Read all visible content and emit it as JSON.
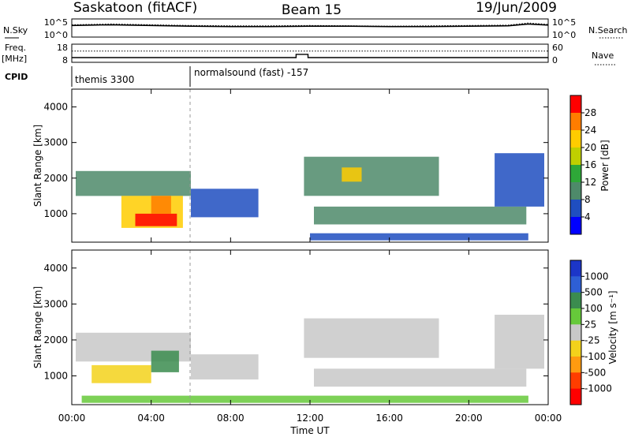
{
  "header": {
    "station": "Saskatoon (fitACF)",
    "beam": "Beam 15",
    "date": "19/Jun/2009"
  },
  "left_labels": {
    "nsky": "N.Sky",
    "freq": "Freq.",
    "freq_unit": "[MHz]",
    "cpid": "CPID"
  },
  "right_labels": {
    "nsearch": "N.Search",
    "nave": "Nave"
  },
  "cpid_strip": [
    {
      "start_hour": 0.0,
      "label": "themis 3300"
    },
    {
      "start_hour": 6.0,
      "label": "normalsound (fast) -157"
    }
  ],
  "chart_data": [
    {
      "type": "line",
      "name": "noise_panel",
      "left_ticks": [
        "10^5",
        "10^0"
      ],
      "right_ticks": [
        "10^5",
        "10^0"
      ],
      "series": [
        {
          "name": "N.Sky",
          "x": [
            0,
            1,
            2,
            4,
            6,
            8,
            10,
            12,
            14,
            16,
            18,
            20,
            22,
            23,
            24
          ],
          "values": [
            3.2,
            3.3,
            3.4,
            3.2,
            3.0,
            2.9,
            2.9,
            3.0,
            3.0,
            2.9,
            2.9,
            3.0,
            3.1,
            3.6,
            3.3
          ]
        },
        {
          "name": "N.Search",
          "x": [
            0,
            1,
            2,
            4,
            6,
            8,
            10,
            12,
            14,
            16,
            18,
            20,
            22,
            23,
            24
          ],
          "values": [
            3.4,
            3.5,
            3.6,
            3.4,
            3.2,
            3.1,
            3.1,
            3.2,
            3.1,
            3.0,
            3.1,
            3.2,
            3.3,
            3.9,
            3.5
          ]
        }
      ]
    },
    {
      "type": "line",
      "name": "freq_nave_panel",
      "left_ticks": [
        "18",
        "8"
      ],
      "right_ticks": [
        "60",
        "0"
      ],
      "series": [
        {
          "name": "Freq.",
          "x": [
            0,
            11.3,
            11.3,
            11.9,
            11.9,
            24
          ],
          "values": [
            10.6,
            10.6,
            12.4,
            12.4,
            10.6,
            10.6
          ]
        },
        {
          "name": "Nave",
          "x": [
            0,
            24
          ],
          "values": [
            37,
            37
          ]
        }
      ]
    },
    {
      "type": "heatmap",
      "name": "power_panel",
      "ylabel": "Slant Range [km]",
      "yticks": [
        1000,
        2000,
        3000,
        4000
      ],
      "ylim": [
        200,
        4500
      ],
      "xlim": [
        0,
        24
      ],
      "colorbar": {
        "label": "Power [dB]",
        "ticks": [
          "28",
          "24",
          "20",
          "16",
          "12",
          "8",
          "4"
        ],
        "colors": [
          "#ff0000",
          "#ff7d00",
          "#ffcc00",
          "#c0d000",
          "#2ea838",
          "#4e8a6a",
          "#1f4ec0",
          "#0000ff"
        ]
      },
      "regions": [
        {
          "x0": 0.2,
          "x1": 6.0,
          "y0": 1500,
          "y1": 2200,
          "level": 2
        },
        {
          "x0": 2.5,
          "x1": 5.6,
          "y0": 600,
          "y1": 1500,
          "level": 5
        },
        {
          "x0": 3.2,
          "x1": 5.3,
          "y0": 650,
          "y1": 1000,
          "level": 7
        },
        {
          "x0": 4.0,
          "x1": 5.0,
          "y0": 1000,
          "y1": 1500,
          "level": 6
        },
        {
          "x0": 6.0,
          "x1": 9.4,
          "y0": 900,
          "y1": 1700,
          "level": 1
        },
        {
          "x0": 11.7,
          "x1": 18.5,
          "y0": 1500,
          "y1": 2600,
          "level": 2
        },
        {
          "x0": 13.6,
          "x1": 14.6,
          "y0": 1900,
          "y1": 2300,
          "level": 5
        },
        {
          "x0": 12.2,
          "x1": 22.9,
          "y0": 700,
          "y1": 1200,
          "level": 2
        },
        {
          "x0": 12.0,
          "x1": 23.0,
          "y0": 250,
          "y1": 450,
          "level": 1
        },
        {
          "x0": 21.3,
          "x1": 23.8,
          "y0": 1200,
          "y1": 2700,
          "level": 1
        }
      ]
    },
    {
      "type": "heatmap",
      "name": "velocity_panel",
      "ylabel": "Slant Range [km]",
      "xlabel": "Time UT",
      "xticks": [
        "00:00",
        "04:00",
        "08:00",
        "12:00",
        "16:00",
        "20:00",
        "00:00"
      ],
      "yticks": [
        1000,
        2000,
        3000,
        4000
      ],
      "ylim": [
        200,
        4500
      ],
      "xlim": [
        0,
        24
      ],
      "colorbar": {
        "label": "Velocity [m s⁻¹]",
        "ticks": [
          "1000",
          "500",
          "100",
          "25",
          "-25",
          "-100",
          "-500",
          "-1000"
        ],
        "colors": [
          "#1c36c8",
          "#2e5fd5",
          "#3b8c4f",
          "#66c93a",
          "#c8c8c8",
          "#f3d21b",
          "#ff9b10",
          "#ff3d00",
          "#ff0000"
        ]
      },
      "regions": [
        {
          "x0": 0.2,
          "x1": 6.0,
          "y0": 1400,
          "y1": 2200,
          "level": 4
        },
        {
          "x0": 1.0,
          "x1": 4.0,
          "y0": 800,
          "y1": 1300,
          "level": 3
        },
        {
          "x0": 4.0,
          "x1": 5.4,
          "y0": 1100,
          "y1": 1700,
          "level": 6
        },
        {
          "x0": 6.0,
          "x1": 9.4,
          "y0": 900,
          "y1": 1600,
          "level": 4
        },
        {
          "x0": 11.7,
          "x1": 18.5,
          "y0": 1500,
          "y1": 2600,
          "level": 4
        },
        {
          "x0": 12.2,
          "x1": 22.9,
          "y0": 700,
          "y1": 1200,
          "level": 4
        },
        {
          "x0": 0.5,
          "x1": 23.0,
          "y0": 250,
          "y1": 450,
          "level": 5
        },
        {
          "x0": 21.3,
          "x1": 23.8,
          "y0": 1200,
          "y1": 2700,
          "level": 4
        }
      ]
    }
  ]
}
